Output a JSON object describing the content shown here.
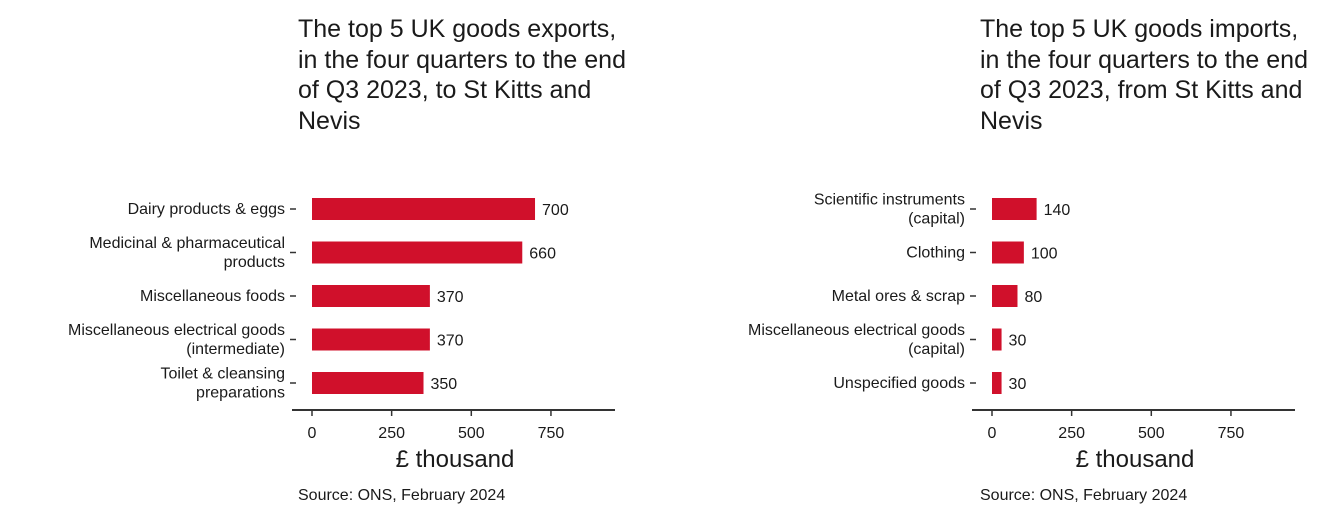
{
  "colors": {
    "bar": "#d0102b",
    "axis": "#333333",
    "text": "#1a1a1a"
  },
  "chart_data": [
    {
      "type": "bar",
      "orientation": "horizontal",
      "title": "The top 5 UK goods exports, in the four quarters to the end of Q3 2023, to St Kitts and Nevis",
      "categories": [
        [
          "Dairy products & eggs"
        ],
        [
          "Medicinal & pharmaceutical",
          "products"
        ],
        [
          "Miscellaneous foods"
        ],
        [
          "Miscellaneous electrical goods",
          "(intermediate)"
        ],
        [
          "Toilet & cleansing",
          "preparations"
        ]
      ],
      "values": [
        700,
        660,
        370,
        370,
        350
      ],
      "data_labels": [
        "700",
        "660",
        "370",
        "370",
        "350"
      ],
      "xlim": [
        0,
        950
      ],
      "xticks": [
        0,
        250,
        500,
        750
      ],
      "xlabel": "£ thousand",
      "source": "Source: ONS, February 2024",
      "grid": false
    },
    {
      "type": "bar",
      "orientation": "horizontal",
      "title": "The top 5 UK goods imports, in the four quarters to the end of Q3 2023, from St Kitts and Nevis",
      "categories": [
        [
          "Scientific instruments",
          "(capital)"
        ],
        [
          "Clothing"
        ],
        [
          "Metal ores & scrap"
        ],
        [
          "Miscellaneous electrical goods",
          "(capital)"
        ],
        [
          "Unspecified goods"
        ]
      ],
      "values": [
        140,
        100,
        80,
        30,
        30
      ],
      "data_labels": [
        "140",
        "100",
        "80",
        "30",
        "30"
      ],
      "xlim": [
        0,
        950
      ],
      "xticks": [
        0,
        250,
        500,
        750
      ],
      "xlabel": "£ thousand",
      "source": "Source: ONS, February 2024",
      "grid": false
    }
  ]
}
